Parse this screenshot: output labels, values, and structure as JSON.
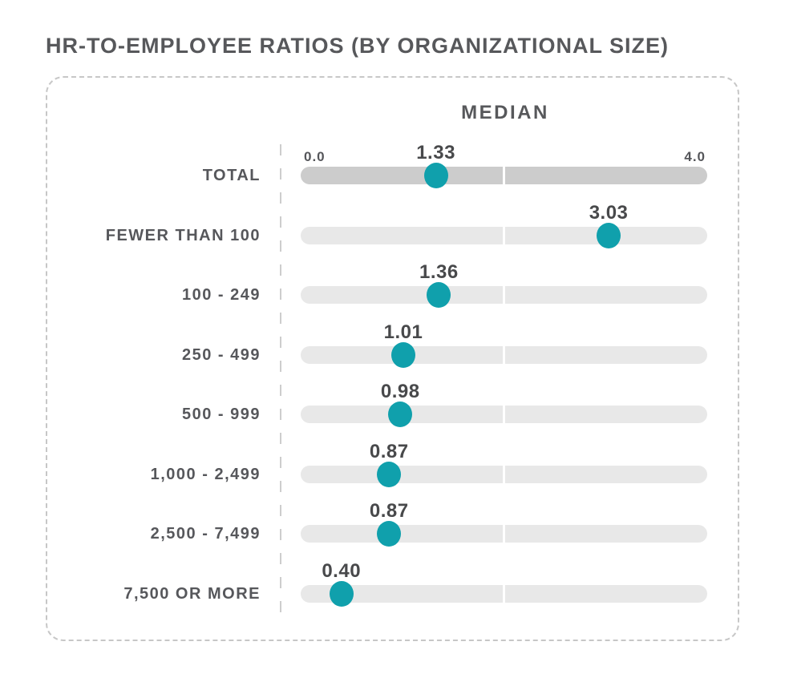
{
  "title": "HR-TO-EMPLOYEE RATIOS (BY ORGANIZATIONAL SIZE)",
  "panel": {
    "header": "MEDIAN",
    "axis_min_label": "0.0",
    "axis_max_label": "4.0"
  },
  "colors": {
    "accent_teal": "#10A0AC",
    "track_total_gray": "#CCCCCC",
    "track_gray": "#E8E8E8",
    "text_gray": "#57585B",
    "value_text_gray": "#48494B",
    "dashed_border_gray": "#C7C7C7"
  },
  "chart_data": {
    "type": "scatter",
    "variant": "dot-plot-sliders",
    "title": "HR-TO-EMPLOYEE RATIOS (BY ORGANIZATIONAL SIZE)",
    "header": "MEDIAN",
    "categories": [
      "TOTAL",
      "FEWER THAN 100",
      "100 - 249",
      "250 - 499",
      "500 - 999",
      "1,000 - 2,499",
      "2,500 - 7,499",
      "7,500 OR MORE"
    ],
    "values": [
      1.33,
      3.03,
      1.36,
      1.01,
      0.98,
      0.87,
      0.87,
      0.4
    ],
    "value_labels": [
      "1.33",
      "3.03",
      "1.36",
      "1.01",
      "0.98",
      "0.87",
      "0.87",
      "0.40"
    ],
    "xlim": [
      0.0,
      4.0
    ],
    "axis_tick_labels": [
      "0.0",
      "4.0"
    ],
    "xlabel": "",
    "ylabel": "",
    "grid": false,
    "legend": false,
    "midpoint_divider_at": 2.0
  }
}
